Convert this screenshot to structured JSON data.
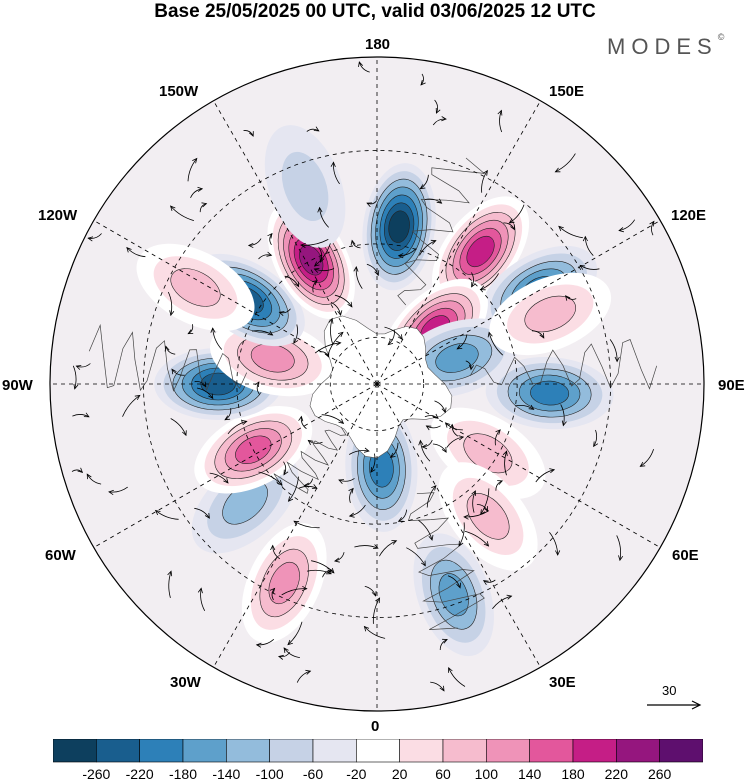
{
  "title": "Base 25/05/2025 00 UTC, valid 03/06/2025 12 UTC",
  "brand": {
    "name": "MODES",
    "mark": "©"
  },
  "longitude_labels": {
    "top": "180",
    "top_left": "150W",
    "top_right": "150E",
    "upper_left": "120W",
    "upper_right": "120E",
    "left": "90W",
    "right": "90E",
    "lower_left": "60W",
    "lower_right": "60E",
    "bottom_left": "30W",
    "bottom_right": "30E",
    "bottom": "0"
  },
  "reference_vector": {
    "value": "30"
  },
  "colorbar": {
    "colors": [
      "#0d3f5e",
      "#195e8e",
      "#2d80b8",
      "#5ea0cb",
      "#93bcdc",
      "#c6d2e6",
      "#e5e6f1",
      "#ffffff",
      "#fbdde4",
      "#f6bcce",
      "#ef93b8",
      "#e3579c",
      "#c51e86",
      "#95167e",
      "#5e0f6e"
    ],
    "tick_labels": [
      "-260",
      "-220",
      "-180",
      "-140",
      "-100",
      "-60",
      "-20",
      "20",
      "60",
      "100",
      "140",
      "180",
      "220",
      "260"
    ]
  },
  "anomaly_centers": [
    {
      "lon": 172,
      "colat": 34,
      "value": -220
    },
    {
      "lon": 142,
      "colat": 36,
      "value": 180
    },
    {
      "lon": 120,
      "colat": 40,
      "value": -140
    },
    {
      "lon": 133,
      "colat": 17,
      "value": 200
    },
    {
      "lon": 108,
      "colat": 18,
      "value": -120
    },
    {
      "lon": 112,
      "colat": 40,
      "value": 60
    },
    {
      "lon": 87,
      "colat": 37,
      "value": -140
    },
    {
      "lon": 58,
      "colat": 28,
      "value": 80
    },
    {
      "lon": 40,
      "colat": 37,
      "value": 60
    },
    {
      "lon": 20,
      "colat": 48,
      "value": -100
    },
    {
      "lon": 3,
      "colat": 18,
      "value": -160
    },
    {
      "lon": -25,
      "colat": 47,
      "value": 100
    },
    {
      "lon": -48,
      "colat": 38,
      "value": -60
    },
    {
      "lon": -62,
      "colat": 30,
      "value": 140
    },
    {
      "lon": -90,
      "colat": 34,
      "value": -200
    },
    {
      "lon": -104,
      "colat": 23,
      "value": 120
    },
    {
      "lon": -123,
      "colat": 33,
      "value": -200
    },
    {
      "lon": -152,
      "colat": 30,
      "value": 240
    },
    {
      "lon": -118,
      "colat": 44,
      "value": 60
    },
    {
      "lon": -160,
      "colat": 45,
      "value": -40
    }
  ]
}
